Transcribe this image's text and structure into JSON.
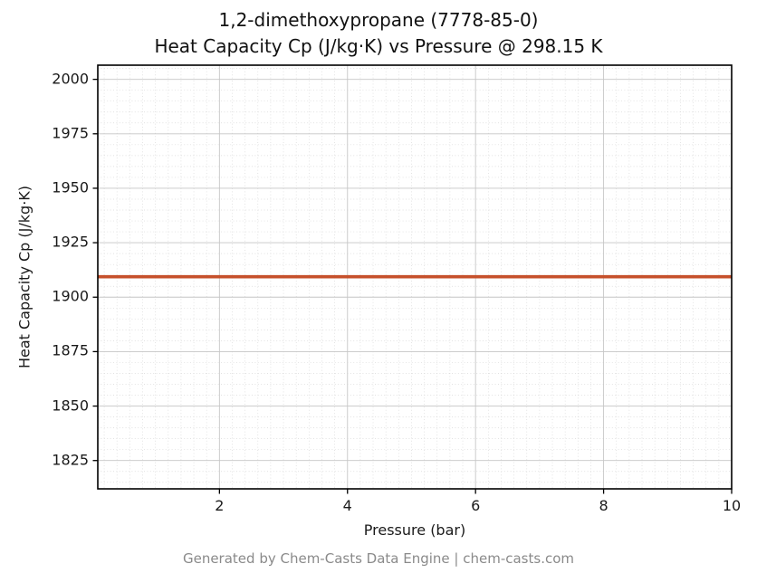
{
  "chart_data": {
    "type": "line",
    "title_line1": "1,2-dimethoxypropane (7778-85-0)",
    "title_line2": "Heat Capacity Cp (J/kg·K) vs Pressure @ 298.15 K",
    "xlabel": "Pressure (bar)",
    "ylabel": "Heat Capacity Cp (J/kg·K)",
    "xlim": [
      0.1,
      10
    ],
    "ylim": [
      1812,
      2006.5
    ],
    "x_ticks": [
      2,
      4,
      6,
      8,
      10
    ],
    "y_ticks": [
      1825,
      1850,
      1875,
      1900,
      1925,
      1950,
      1975,
      2000
    ],
    "x_minor_step": 0.2,
    "y_minor_step": 5,
    "grid": true,
    "legend": "none",
    "series": [
      {
        "name": "Heat Capacity Cp",
        "x": [
          0.1,
          10
        ],
        "y": [
          1909.4,
          1909.4
        ],
        "color": "#c6502b"
      }
    ],
    "colors": {
      "line": "#c6502b",
      "major_grid": "#c6c6c6",
      "minor_grid": "#d2d2d2",
      "axis_frame": "#000000",
      "text": "#111111",
      "footer_text": "#8a8a8a"
    }
  },
  "footer": {
    "credit": "Generated by Chem-Casts Data Engine | chem-casts.com"
  }
}
